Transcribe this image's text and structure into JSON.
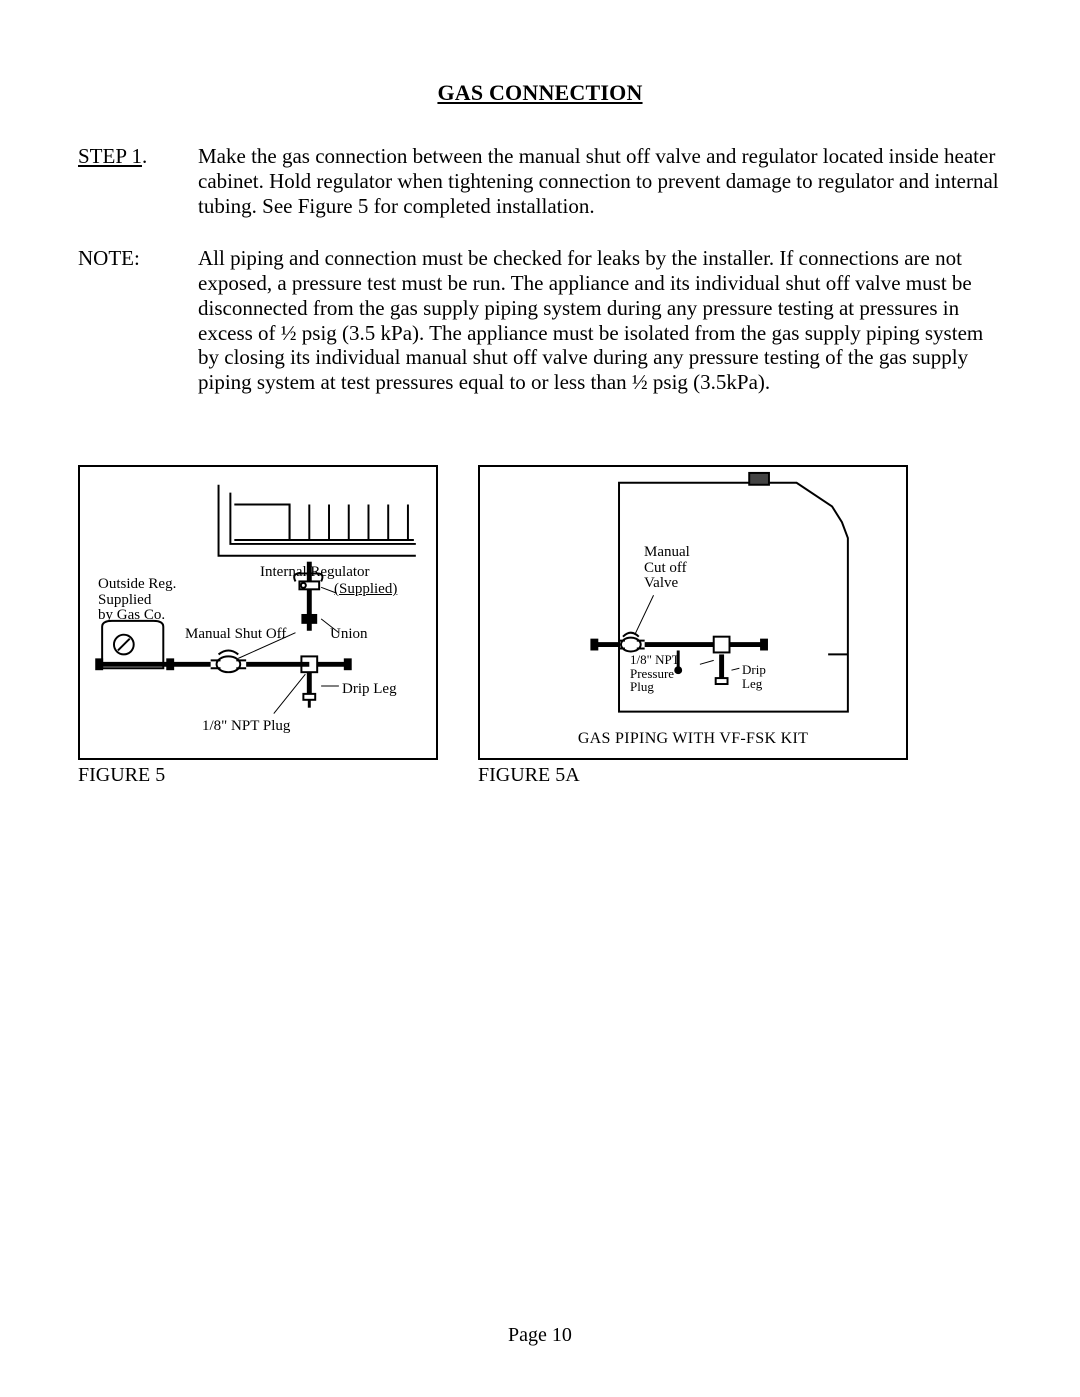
{
  "colors": {
    "ink": "#000000",
    "bg": "#ffffff"
  },
  "title": "GAS CONNECTION",
  "step": {
    "label": "STEP 1",
    "dot": ".",
    "text": "Make the gas connection between the manual shut off valve and regulator located inside heater cabinet.  Hold regulator when tightening connection to prevent damage to regulator and internal tubing.  See Figure 5 for completed installation."
  },
  "note": {
    "label": "NOTE:",
    "text": "All piping and connection must be checked for leaks by the installer.  If connections are not exposed, a pressure test must be run.  The appliance and its individual shut off valve must be disconnected from the gas supply piping system during any pressure testing at pressures in excess of ½ psig (3.5 kPa).  The appliance must be isolated from the gas supply piping system by closing its individual manual shut off valve during any pressure testing of the gas supply piping system at test pressures equal to or less than ½ psig (3.5kPa)."
  },
  "fig5": {
    "caption": "FIGURE 5",
    "labels": {
      "outside_reg": "Outside Reg.\nSupplied\nby Gas Co.",
      "internal_reg": "Internal Regulator",
      "supplied": "(Supplied)",
      "manual_shut": "Manual Shut Off",
      "union": "Union",
      "drip_leg": "Drip Leg",
      "npt_plug": "1/8\" NPT Plug"
    }
  },
  "fig5a": {
    "caption": "FIGURE 5A",
    "kit": "GAS PIPING WITH VF-FSK KIT",
    "labels": {
      "manual": "Manual\nCut off\nValve",
      "npt": "1/8\" NPT\nPressure\nPlug",
      "drip": "Drip\nLeg"
    }
  },
  "page_number": "Page 10"
}
